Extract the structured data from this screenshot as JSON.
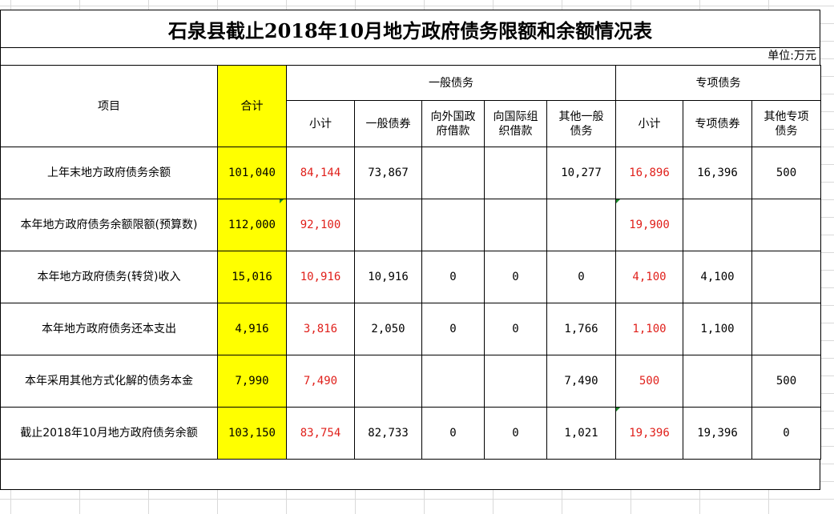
{
  "title": "石泉县截止2018年10月地方政府债务限额和余额情况表",
  "unit": "单位:万元",
  "header": {
    "item": "项目",
    "total": "合计",
    "general_group": "一般债务",
    "special_group": "专项债务",
    "general_sub": [
      "小计",
      "一般债券",
      "向外国政府借款",
      "向国际组织借款",
      "其他一般债务"
    ],
    "special_sub": [
      "小计",
      "专项债券",
      "其他专项债务"
    ]
  },
  "rows": [
    {
      "item": "上年末地方政府债务余额",
      "total": "101,040",
      "g_subtotal": "84,144",
      "g_bond": "73,867",
      "g_foreign": "",
      "g_intl": "",
      "g_other": "10,277",
      "s_subtotal": "16,896",
      "s_bond": "16,396",
      "s_other": "500"
    },
    {
      "item": "本年地方政府债务余额限额(预算数)",
      "total": "112,000",
      "g_subtotal": "92,100",
      "g_bond": "",
      "g_foreign": "",
      "g_intl": "",
      "g_other": "",
      "s_subtotal": "19,900",
      "s_bond": "",
      "s_other": ""
    },
    {
      "item": "本年地方政府债务(转贷)收入",
      "total": "15,016",
      "g_subtotal": "10,916",
      "g_bond": "10,916",
      "g_foreign": "0",
      "g_intl": "0",
      "g_other": "0",
      "s_subtotal": "4,100",
      "s_bond": "4,100",
      "s_other": ""
    },
    {
      "item": "本年地方政府债务还本支出",
      "total": "4,916",
      "g_subtotal": "3,816",
      "g_bond": "2,050",
      "g_foreign": "0",
      "g_intl": "0",
      "g_other": "1,766",
      "s_subtotal": "1,100",
      "s_bond": "1,100",
      "s_other": ""
    },
    {
      "item": "本年采用其他方式化解的债务本金",
      "total": "7,990",
      "g_subtotal": "7,490",
      "g_bond": "",
      "g_foreign": "",
      "g_intl": "",
      "g_other": "7,490",
      "s_subtotal": "500",
      "s_bond": "",
      "s_other": "500"
    },
    {
      "item": "截止2018年10月地方政府债务余额",
      "total": "103,150",
      "g_subtotal": "83,754",
      "g_bond": "82,733",
      "g_foreign": "0",
      "g_intl": "0",
      "g_other": "1,021",
      "s_subtotal": "19,396",
      "s_bond": "19,396",
      "s_other": "0"
    }
  ],
  "colors": {
    "highlight": "#ffff00",
    "red_text": "#e0201b",
    "grid": "#d9d9d9",
    "tick": "#1a8a2a"
  }
}
